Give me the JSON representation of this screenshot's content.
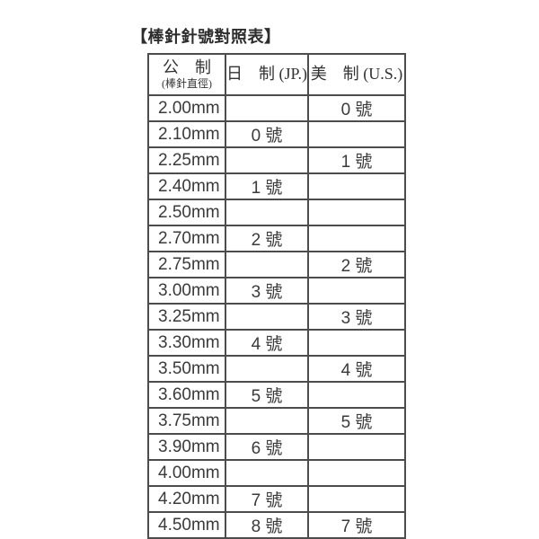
{
  "title": "【棒針針號對照表】",
  "table": {
    "header": {
      "metric_main": "公　制",
      "metric_sub": "(棒針直徑)",
      "jp": "日　制 (JP.)",
      "us": "美　制 (U.S.)"
    },
    "rows": [
      {
        "metric": "2.00mm",
        "jp": "",
        "us": "0 號"
      },
      {
        "metric": "2.10mm",
        "jp": "0 號",
        "us": ""
      },
      {
        "metric": "2.25mm",
        "jp": "",
        "us": "1 號"
      },
      {
        "metric": "2.40mm",
        "jp": "1 號",
        "us": ""
      },
      {
        "metric": "2.50mm",
        "jp": "",
        "us": ""
      },
      {
        "metric": "2.70mm",
        "jp": "2 號",
        "us": ""
      },
      {
        "metric": "2.75mm",
        "jp": "",
        "us": "2 號"
      },
      {
        "metric": "3.00mm",
        "jp": "3 號",
        "us": ""
      },
      {
        "metric": "3.25mm",
        "jp": "",
        "us": "3 號"
      },
      {
        "metric": "3.30mm",
        "jp": "4 號",
        "us": ""
      },
      {
        "metric": "3.50mm",
        "jp": "",
        "us": "4 號"
      },
      {
        "metric": "3.60mm",
        "jp": "5 號",
        "us": ""
      },
      {
        "metric": "3.75mm",
        "jp": "",
        "us": "5 號"
      },
      {
        "metric": "3.90mm",
        "jp": "6 號",
        "us": ""
      },
      {
        "metric": "4.00mm",
        "jp": "",
        "us": ""
      },
      {
        "metric": "4.20mm",
        "jp": "7 號",
        "us": ""
      },
      {
        "metric": "4.50mm",
        "jp": "8 號",
        "us": "7 號"
      }
    ],
    "colors": {
      "text": "#3a3a3a",
      "border": "#4c4c4c",
      "background": "#ffffff"
    }
  }
}
